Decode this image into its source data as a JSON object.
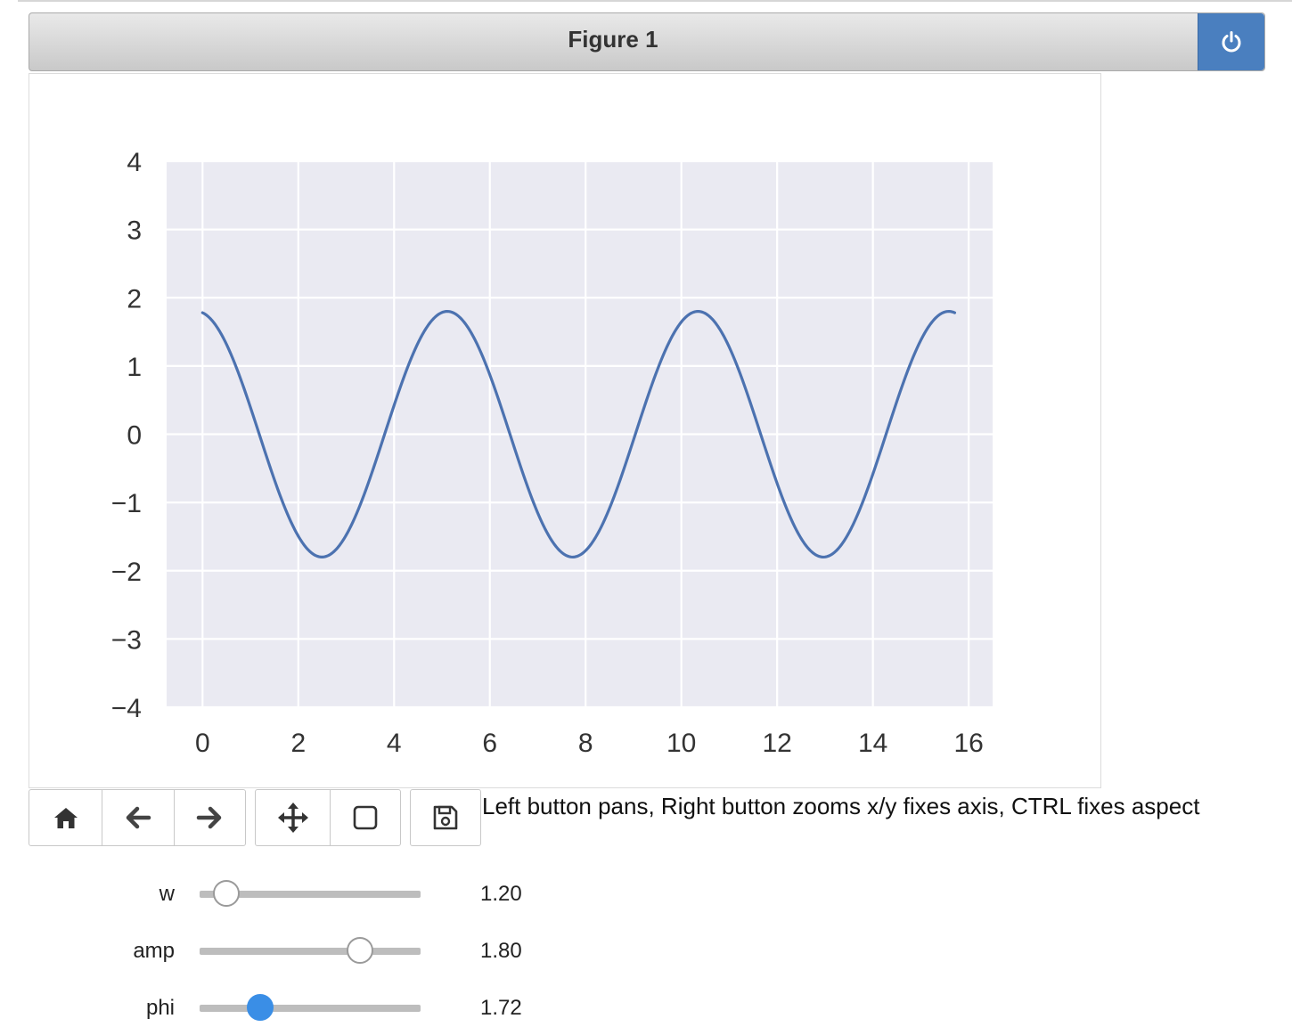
{
  "figure": {
    "title": "Figure 1",
    "power_icon": "power-icon",
    "accent_color": "#4a7fbf"
  },
  "chart_data": {
    "type": "line",
    "title": "",
    "xlabel": "",
    "ylabel": "",
    "xlim": [
      -0.75,
      16.5
    ],
    "ylim": [
      -4,
      4
    ],
    "xticks": [
      "0",
      "2",
      "4",
      "6",
      "8",
      "10",
      "12",
      "14",
      "16"
    ],
    "yticks": [
      "4",
      "3",
      "2",
      "1",
      "0",
      "−1",
      "−2",
      "−3",
      "−4"
    ],
    "grid": true,
    "background_color": "#eaeaf2",
    "line_color": "#4c72b0",
    "function": "amp * sin(w * x + phi)",
    "series": [
      {
        "x_range": [
          0,
          15.708
        ],
        "amp": 1.8,
        "w": 1.2,
        "phi": 1.72
      }
    ]
  },
  "toolbar": {
    "buttons": [
      {
        "name": "home-button",
        "icon": "home-icon"
      },
      {
        "name": "back-button",
        "icon": "arrow-left-icon"
      },
      {
        "name": "forward-button",
        "icon": "arrow-right-icon"
      },
      {
        "name": "pan-button",
        "icon": "move-icon"
      },
      {
        "name": "zoom-button",
        "icon": "square-icon"
      },
      {
        "name": "save-button",
        "icon": "floppy-disk-icon"
      }
    ],
    "message": "Left button pans, Right button zooms x/y fixes axis, CTRL fixes aspect"
  },
  "sliders": [
    {
      "label": "w",
      "value": 1.2,
      "display": "1.20",
      "fraction": 0.125,
      "active": false
    },
    {
      "label": "amp",
      "value": 1.8,
      "display": "1.80",
      "fraction": 0.73,
      "active": false
    },
    {
      "label": "phi",
      "value": 1.72,
      "display": "1.72",
      "fraction": 0.28,
      "active": true
    }
  ]
}
